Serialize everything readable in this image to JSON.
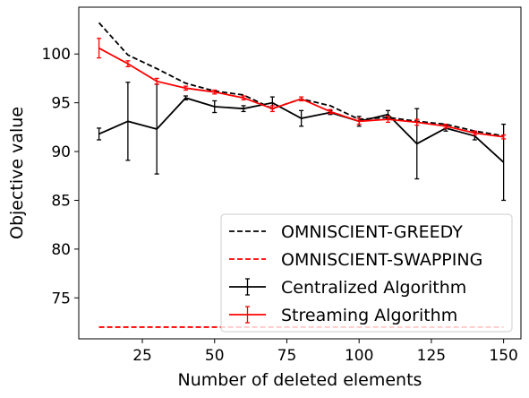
{
  "chart_data": {
    "type": "line",
    "title": "",
    "xlabel": "Number of deleted elements",
    "ylabel": "Objective value",
    "xlim": [
      3,
      156
    ],
    "ylim": [
      70.8,
      104.8
    ],
    "xticks": [
      25,
      50,
      75,
      100,
      125,
      150
    ],
    "yticks": [
      75,
      80,
      85,
      90,
      95,
      100
    ],
    "grid": false,
    "legend_position": "bottom-right",
    "series": [
      {
        "name": "OMNISCIENT-GREEDY",
        "style": "dashed",
        "color": "#000000",
        "x": [
          10,
          20,
          30,
          40,
          50,
          60,
          70,
          80,
          90,
          100,
          110,
          120,
          130,
          140,
          150
        ],
        "y": [
          103.2,
          99.9,
          98.5,
          97.0,
          96.2,
          95.8,
          94.4,
          95.4,
          94.7,
          93.3,
          93.5,
          93.1,
          92.8,
          92.1,
          91.6
        ]
      },
      {
        "name": "OMNISCIENT-SWAPPING",
        "style": "dashed",
        "color": "#ff0000",
        "x": [
          10,
          150
        ],
        "y": [
          72.0,
          72.0
        ]
      },
      {
        "name": "Centralized Algorithm",
        "style": "solid",
        "color": "#000000",
        "x": [
          10,
          20,
          30,
          40,
          50,
          60,
          70,
          80,
          90,
          100,
          110,
          120,
          130,
          140,
          150
        ],
        "y": [
          91.8,
          93.1,
          92.3,
          95.5,
          94.6,
          94.4,
          95.0,
          93.4,
          94.0,
          93.1,
          93.8,
          90.8,
          92.4,
          91.6,
          88.9
        ],
        "err": [
          0.6,
          4.0,
          4.6,
          0.2,
          0.6,
          0.3,
          0.6,
          0.8,
          0.2,
          0.5,
          0.4,
          3.6,
          0.3,
          0.4,
          3.9
        ]
      },
      {
        "name": "Streaming Algorithm",
        "style": "solid",
        "color": "#ff0000",
        "x": [
          10,
          20,
          30,
          40,
          50,
          60,
          70,
          80,
          90,
          100,
          110,
          120,
          130,
          140,
          150
        ],
        "y": [
          100.6,
          99.0,
          97.2,
          96.5,
          96.1,
          95.5,
          94.4,
          95.4,
          94.1,
          93.1,
          93.3,
          93.0,
          92.6,
          91.9,
          91.5
        ],
        "err": [
          1.0,
          0.3,
          0.3,
          0.2,
          0.2,
          0.2,
          0.3,
          0.2,
          0.2,
          0.3,
          0.3,
          0.3,
          0.2,
          0.2,
          0.2
        ]
      }
    ]
  }
}
